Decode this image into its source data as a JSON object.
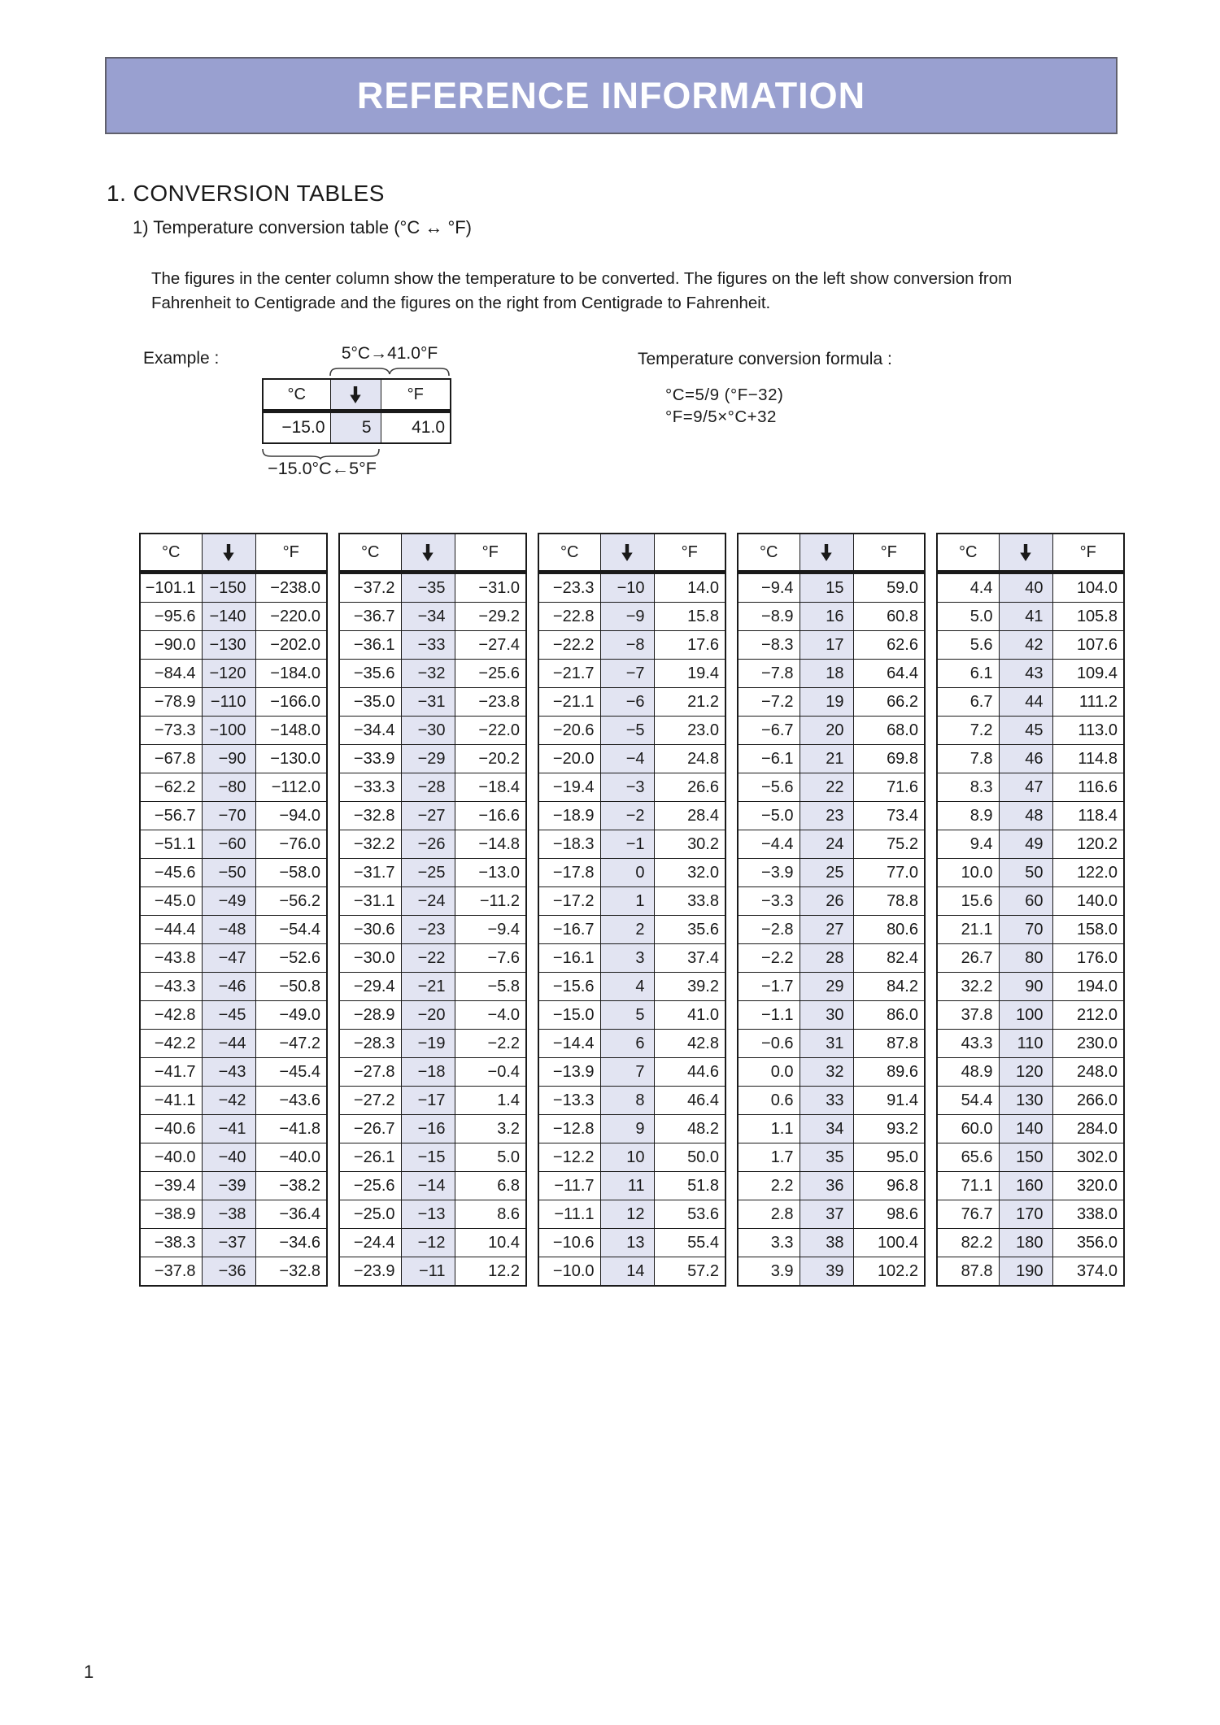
{
  "page": {
    "number": "1"
  },
  "banner": {
    "title": "REFERENCE INFORMATION",
    "bg_color": "#99a0d0",
    "text_color": "#ffffff"
  },
  "section": {
    "heading": "1. CONVERSION TABLES",
    "subheading": "1) Temperature conversion table (°C ↔ °F)"
  },
  "intro": {
    "line1": "The figures in the center column show the temperature to be converted. The figures on the left show conversion from",
    "line2": "Fahrenheit to Centigrade and the figures on the right from Centigrade to Fahrenheit."
  },
  "example": {
    "label": "Example :",
    "to_f_annotation": "5°C→41.0°F",
    "to_c_annotation": "−15.0°C←5°F",
    "headers": {
      "c": "°C",
      "arrow": "↓",
      "f": "°F"
    },
    "row": {
      "c": "−15.0",
      "input": "5",
      "f": "41.0"
    }
  },
  "formula": {
    "title": "Temperature conversion formula :",
    "c_formula": "°C=5/9 (°F−32)",
    "f_formula": "°F=9/5×°C+32"
  },
  "conversion": {
    "headers": {
      "c": "°C",
      "arrow": "↓",
      "f": "°F"
    },
    "highlight_color": "#e2e4f2",
    "tables": [
      {
        "rows": [
          [
            "−101.1",
            "−150",
            "−238.0"
          ],
          [
            "−95.6",
            "−140",
            "−220.0"
          ],
          [
            "−90.0",
            "−130",
            "−202.0"
          ],
          [
            "−84.4",
            "−120",
            "−184.0"
          ],
          [
            "−78.9",
            "−110",
            "−166.0"
          ],
          [
            "−73.3",
            "−100",
            "−148.0"
          ],
          [
            "−67.8",
            "−90",
            "−130.0"
          ],
          [
            "−62.2",
            "−80",
            "−112.0"
          ],
          [
            "−56.7",
            "−70",
            "−94.0"
          ],
          [
            "−51.1",
            "−60",
            "−76.0"
          ],
          [
            "−45.6",
            "−50",
            "−58.0"
          ],
          [
            "−45.0",
            "−49",
            "−56.2"
          ],
          [
            "−44.4",
            "−48",
            "−54.4"
          ],
          [
            "−43.8",
            "−47",
            "−52.6"
          ],
          [
            "−43.3",
            "−46",
            "−50.8"
          ],
          [
            "−42.8",
            "−45",
            "−49.0"
          ],
          [
            "−42.2",
            "−44",
            "−47.2"
          ],
          [
            "−41.7",
            "−43",
            "−45.4"
          ],
          [
            "−41.1",
            "−42",
            "−43.6"
          ],
          [
            "−40.6",
            "−41",
            "−41.8"
          ],
          [
            "−40.0",
            "−40",
            "−40.0"
          ],
          [
            "−39.4",
            "−39",
            "−38.2"
          ],
          [
            "−38.9",
            "−38",
            "−36.4"
          ],
          [
            "−38.3",
            "−37",
            "−34.6"
          ],
          [
            "−37.8",
            "−36",
            "−32.8"
          ]
        ]
      },
      {
        "rows": [
          [
            "−37.2",
            "−35",
            "−31.0"
          ],
          [
            "−36.7",
            "−34",
            "−29.2"
          ],
          [
            "−36.1",
            "−33",
            "−27.4"
          ],
          [
            "−35.6",
            "−32",
            "−25.6"
          ],
          [
            "−35.0",
            "−31",
            "−23.8"
          ],
          [
            "−34.4",
            "−30",
            "−22.0"
          ],
          [
            "−33.9",
            "−29",
            "−20.2"
          ],
          [
            "−33.3",
            "−28",
            "−18.4"
          ],
          [
            "−32.8",
            "−27",
            "−16.6"
          ],
          [
            "−32.2",
            "−26",
            "−14.8"
          ],
          [
            "−31.7",
            "−25",
            "−13.0"
          ],
          [
            "−31.1",
            "−24",
            "−11.2"
          ],
          [
            "−30.6",
            "−23",
            "−9.4"
          ],
          [
            "−30.0",
            "−22",
            "−7.6"
          ],
          [
            "−29.4",
            "−21",
            "−5.8"
          ],
          [
            "−28.9",
            "−20",
            "−4.0"
          ],
          [
            "−28.3",
            "−19",
            "−2.2"
          ],
          [
            "−27.8",
            "−18",
            "−0.4"
          ],
          [
            "−27.2",
            "−17",
            "1.4"
          ],
          [
            "−26.7",
            "−16",
            "3.2"
          ],
          [
            "−26.1",
            "−15",
            "5.0"
          ],
          [
            "−25.6",
            "−14",
            "6.8"
          ],
          [
            "−25.0",
            "−13",
            "8.6"
          ],
          [
            "−24.4",
            "−12",
            "10.4"
          ],
          [
            "−23.9",
            "−11",
            "12.2"
          ]
        ]
      },
      {
        "rows": [
          [
            "−23.3",
            "−10",
            "14.0"
          ],
          [
            "−22.8",
            "−9",
            "15.8"
          ],
          [
            "−22.2",
            "−8",
            "17.6"
          ],
          [
            "−21.7",
            "−7",
            "19.4"
          ],
          [
            "−21.1",
            "−6",
            "21.2"
          ],
          [
            "−20.6",
            "−5",
            "23.0"
          ],
          [
            "−20.0",
            "−4",
            "24.8"
          ],
          [
            "−19.4",
            "−3",
            "26.6"
          ],
          [
            "−18.9",
            "−2",
            "28.4"
          ],
          [
            "−18.3",
            "−1",
            "30.2"
          ],
          [
            "−17.8",
            "0",
            "32.0"
          ],
          [
            "−17.2",
            "1",
            "33.8"
          ],
          [
            "−16.7",
            "2",
            "35.6"
          ],
          [
            "−16.1",
            "3",
            "37.4"
          ],
          [
            "−15.6",
            "4",
            "39.2"
          ],
          [
            "−15.0",
            "5",
            "41.0"
          ],
          [
            "−14.4",
            "6",
            "42.8"
          ],
          [
            "−13.9",
            "7",
            "44.6"
          ],
          [
            "−13.3",
            "8",
            "46.4"
          ],
          [
            "−12.8",
            "9",
            "48.2"
          ],
          [
            "−12.2",
            "10",
            "50.0"
          ],
          [
            "−11.7",
            "11",
            "51.8"
          ],
          [
            "−11.1",
            "12",
            "53.6"
          ],
          [
            "−10.6",
            "13",
            "55.4"
          ],
          [
            "−10.0",
            "14",
            "57.2"
          ]
        ]
      },
      {
        "rows": [
          [
            "−9.4",
            "15",
            "59.0"
          ],
          [
            "−8.9",
            "16",
            "60.8"
          ],
          [
            "−8.3",
            "17",
            "62.6"
          ],
          [
            "−7.8",
            "18",
            "64.4"
          ],
          [
            "−7.2",
            "19",
            "66.2"
          ],
          [
            "−6.7",
            "20",
            "68.0"
          ],
          [
            "−6.1",
            "21",
            "69.8"
          ],
          [
            "−5.6",
            "22",
            "71.6"
          ],
          [
            "−5.0",
            "23",
            "73.4"
          ],
          [
            "−4.4",
            "24",
            "75.2"
          ],
          [
            "−3.9",
            "25",
            "77.0"
          ],
          [
            "−3.3",
            "26",
            "78.8"
          ],
          [
            "−2.8",
            "27",
            "80.6"
          ],
          [
            "−2.2",
            "28",
            "82.4"
          ],
          [
            "−1.7",
            "29",
            "84.2"
          ],
          [
            "−1.1",
            "30",
            "86.0"
          ],
          [
            "−0.6",
            "31",
            "87.8"
          ],
          [
            "0.0",
            "32",
            "89.6"
          ],
          [
            "0.6",
            "33",
            "91.4"
          ],
          [
            "1.1",
            "34",
            "93.2"
          ],
          [
            "1.7",
            "35",
            "95.0"
          ],
          [
            "2.2",
            "36",
            "96.8"
          ],
          [
            "2.8",
            "37",
            "98.6"
          ],
          [
            "3.3",
            "38",
            "100.4"
          ],
          [
            "3.9",
            "39",
            "102.2"
          ]
        ]
      },
      {
        "rows": [
          [
            "4.4",
            "40",
            "104.0"
          ],
          [
            "5.0",
            "41",
            "105.8"
          ],
          [
            "5.6",
            "42",
            "107.6"
          ],
          [
            "6.1",
            "43",
            "109.4"
          ],
          [
            "6.7",
            "44",
            "111.2"
          ],
          [
            "7.2",
            "45",
            "113.0"
          ],
          [
            "7.8",
            "46",
            "114.8"
          ],
          [
            "8.3",
            "47",
            "116.6"
          ],
          [
            "8.9",
            "48",
            "118.4"
          ],
          [
            "9.4",
            "49",
            "120.2"
          ],
          [
            "10.0",
            "50",
            "122.0"
          ],
          [
            "15.6",
            "60",
            "140.0"
          ],
          [
            "21.1",
            "70",
            "158.0"
          ],
          [
            "26.7",
            "80",
            "176.0"
          ],
          [
            "32.2",
            "90",
            "194.0"
          ],
          [
            "37.8",
            "100",
            "212.0"
          ],
          [
            "43.3",
            "110",
            "230.0"
          ],
          [
            "48.9",
            "120",
            "248.0"
          ],
          [
            "54.4",
            "130",
            "266.0"
          ],
          [
            "60.0",
            "140",
            "284.0"
          ],
          [
            "65.6",
            "150",
            "302.0"
          ],
          [
            "71.1",
            "160",
            "320.0"
          ],
          [
            "76.7",
            "170",
            "338.0"
          ],
          [
            "82.2",
            "180",
            "356.0"
          ],
          [
            "87.8",
            "190",
            "374.0"
          ]
        ]
      }
    ]
  }
}
